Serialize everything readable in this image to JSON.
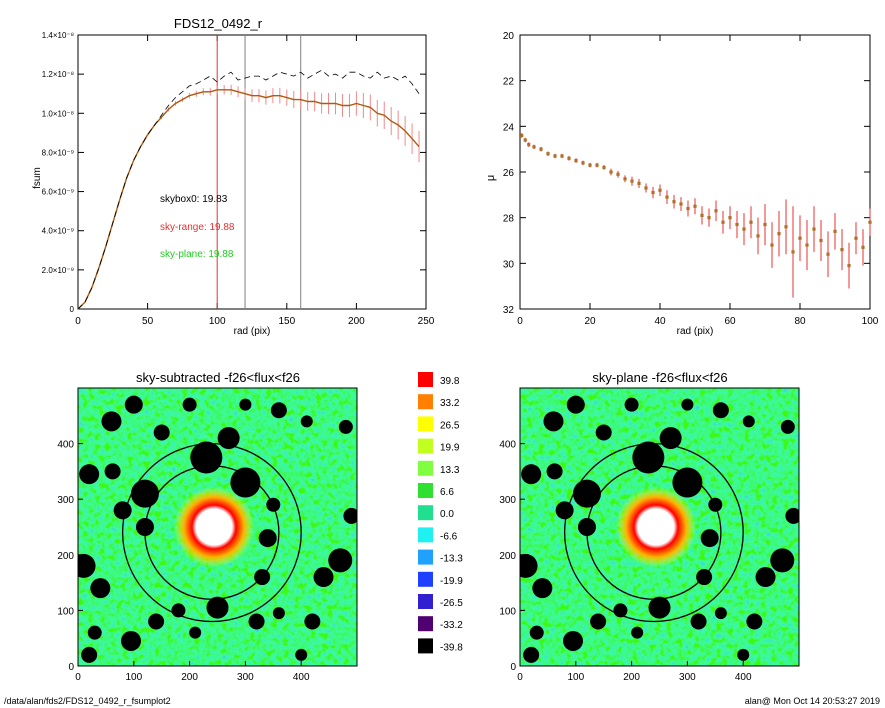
{
  "chart_data": [
    {
      "type": "line",
      "title": "FDS12_0492_r",
      "xlabel": "rad (pix)",
      "ylabel": "fsum",
      "xlim": [
        0,
        250
      ],
      "ylim": [
        0,
        1.4e-08
      ],
      "x_ticks": [
        "0",
        "50",
        "100",
        "150",
        "200",
        "250"
      ],
      "y_ticks": [
        "0",
        "2.0×10⁻⁹",
        "4.0×10⁻⁹",
        "6.0×10⁻⁹",
        "8.0×10⁻⁹",
        "1.0×10⁻⁸",
        "1.2×10⁻⁸",
        "1.4×10⁻⁸"
      ],
      "vlines": [
        {
          "x": 100,
          "color": "#e83030"
        },
        {
          "x": 120,
          "color": "#808080"
        },
        {
          "x": 160,
          "color": "#808080"
        }
      ],
      "annotations": [
        {
          "text": "skybox0: 19.83",
          "color": "#000000"
        },
        {
          "text": "sky-range: 19.88",
          "color": "#e83030"
        },
        {
          "text": "sky-plane: 19.88",
          "color": "#22cc22"
        }
      ],
      "series": [
        {
          "style": "solid",
          "color": "#b05a10",
          "x": [
            0,
            5,
            10,
            15,
            20,
            25,
            30,
            35,
            40,
            45,
            50,
            55,
            60,
            65,
            70,
            75,
            80,
            85,
            90,
            95,
            100,
            105,
            110,
            115,
            120,
            125,
            130,
            135,
            140,
            145,
            150,
            155,
            160,
            165,
            170,
            175,
            180,
            185,
            190,
            195,
            200,
            205,
            210,
            215,
            220,
            225,
            230,
            235,
            240,
            245
          ],
          "values": [
            0,
            3.5e-10,
            1.1e-09,
            2.1e-09,
            3.2e-09,
            4.4e-09,
            5.6e-09,
            6.7e-09,
            7.6e-09,
            8.3e-09,
            8.9e-09,
            9.4e-09,
            9.8e-09,
            1.02e-08,
            1.05e-08,
            1.07e-08,
            1.09e-08,
            1.1e-08,
            1.11e-08,
            1.11e-08,
            1.12e-08,
            1.12e-08,
            1.12e-08,
            1.11e-08,
            1.1e-08,
            1.09e-08,
            1.09e-08,
            1.08e-08,
            1.09e-08,
            1.09e-08,
            1.08e-08,
            1.07e-08,
            1.07e-08,
            1.06e-08,
            1.06e-08,
            1.05e-08,
            1.05e-08,
            1.05e-08,
            1.04e-08,
            1.04e-08,
            1.05e-08,
            1.04e-08,
            1.03e-08,
            1e-08,
            9.9e-09,
            9.6e-09,
            9.4e-09,
            9.1e-09,
            8.7e-09,
            8.3e-09
          ],
          "errors": [
            0,
            0,
            0,
            0,
            0,
            0,
            0,
            0,
            0,
            0,
            0,
            0,
            1e-10,
            1e-10,
            1.2e-10,
            1.2e-10,
            1.4e-10,
            1.6e-10,
            1.8e-10,
            2e-10,
            2.2e-10,
            2.4e-10,
            2.6e-10,
            2.8e-10,
            3e-10,
            3.2e-10,
            3.4e-10,
            3.6e-10,
            3.8e-10,
            4e-10,
            4.2e-10,
            4.4e-10,
            4.6e-10,
            4.8e-10,
            5e-10,
            5.2e-10,
            5.4e-10,
            5.6e-10,
            5.8e-10,
            6e-10,
            6.2e-10,
            6.4e-10,
            6.6e-10,
            6.8e-10,
            7e-10,
            7.2e-10,
            7.4e-10,
            7.6e-10,
            7.8e-10,
            8e-10
          ]
        },
        {
          "style": "dashed",
          "color": "#000000",
          "x": [
            0,
            5,
            10,
            15,
            20,
            25,
            30,
            35,
            40,
            45,
            50,
            55,
            60,
            65,
            70,
            75,
            80,
            85,
            90,
            95,
            100,
            105,
            110,
            115,
            120,
            125,
            130,
            135,
            140,
            145,
            150,
            155,
            160,
            165,
            170,
            175,
            180,
            185,
            190,
            195,
            200,
            205,
            210,
            215,
            220,
            225,
            230,
            235,
            240,
            245
          ],
          "values": [
            0,
            3.5e-10,
            1.1e-09,
            2.1e-09,
            3.2e-09,
            4.4e-09,
            5.6e-09,
            6.7e-09,
            7.6e-09,
            8.3e-09,
            8.9e-09,
            9.4e-09,
            9.9e-09,
            1.04e-08,
            1.08e-08,
            1.11e-08,
            1.14e-08,
            1.15e-08,
            1.17e-08,
            1.19e-08,
            1.16e-08,
            1.19e-08,
            1.21e-08,
            1.17e-08,
            1.18e-08,
            1.19e-08,
            1.19e-08,
            1.17e-08,
            1.19e-08,
            1.21e-08,
            1.2e-08,
            1.19e-08,
            1.21e-08,
            1.18e-08,
            1.2e-08,
            1.22e-08,
            1.19e-08,
            1.2e-08,
            1.18e-08,
            1.21e-08,
            1.21e-08,
            1.19e-08,
            1.18e-08,
            1.21e-08,
            1.18e-08,
            1.19e-08,
            1.17e-08,
            1.19e-08,
            1.15e-08,
            1.1e-08
          ]
        }
      ]
    },
    {
      "type": "scatter",
      "title": "",
      "xlabel": "rad (pix)",
      "ylabel": "μ",
      "xlim": [
        0,
        100
      ],
      "ylim": [
        32,
        20
      ],
      "x_ticks": [
        "0",
        "20",
        "40",
        "60",
        "80",
        "100"
      ],
      "y_ticks": [
        "20",
        "22",
        "24",
        "26",
        "28",
        "30",
        "32"
      ],
      "series": [
        {
          "color": "#b0702a",
          "error_color": "#e83030",
          "x": [
            0.5,
            1.5,
            2.5,
            4,
            6,
            8,
            10,
            12,
            14,
            16,
            18,
            20,
            22,
            24,
            26,
            28,
            30,
            32,
            34,
            36,
            38,
            40,
            42,
            44,
            46,
            48,
            50,
            52,
            54,
            56,
            58,
            60,
            62,
            64,
            66,
            68,
            70,
            72,
            74,
            76,
            78,
            80,
            82,
            84,
            86,
            88,
            90,
            92,
            94,
            96,
            98,
            100
          ],
          "values": [
            24.4,
            24.6,
            24.8,
            24.9,
            25.0,
            25.2,
            25.3,
            25.3,
            25.4,
            25.5,
            25.6,
            25.7,
            25.7,
            25.8,
            26.0,
            26.1,
            26.3,
            26.4,
            26.5,
            26.7,
            26.9,
            26.8,
            27.1,
            27.3,
            27.4,
            27.6,
            27.5,
            27.9,
            28.0,
            27.7,
            28.2,
            28.0,
            28.3,
            28.5,
            28.2,
            28.8,
            28.3,
            29.2,
            28.7,
            28.4,
            29.5,
            28.9,
            29.2,
            28.5,
            29.0,
            29.6,
            28.6,
            29.4,
            30.1,
            28.9,
            29.3,
            28.2
          ],
          "errors": [
            0.1,
            0.1,
            0.1,
            0.1,
            0.1,
            0.1,
            0.1,
            0.1,
            0.1,
            0.1,
            0.1,
            0.1,
            0.1,
            0.1,
            0.15,
            0.15,
            0.15,
            0.2,
            0.2,
            0.2,
            0.25,
            0.25,
            0.3,
            0.3,
            0.3,
            0.35,
            0.35,
            0.4,
            0.4,
            0.45,
            0.5,
            0.5,
            0.6,
            0.7,
            0.7,
            0.8,
            0.9,
            1.0,
            1.0,
            1.2,
            2.0,
            1.0,
            1.1,
            1.0,
            0.9,
            1.0,
            0.8,
            0.9,
            1.0,
            0.7,
            0.8,
            0.6
          ]
        }
      ]
    },
    {
      "type": "heatmap",
      "title": "sky-subtracted -f26<flux<f26",
      "xlim": [
        0,
        500
      ],
      "ylim": [
        0,
        500
      ],
      "x_ticks": [
        "0",
        "100",
        "200",
        "300",
        "400"
      ],
      "y_ticks": [
        "0",
        "100",
        "200",
        "300",
        "400"
      ],
      "ellipses": [
        {
          "cx": 240,
          "cy": 240,
          "rx": 120,
          "ry": 120,
          "color": "#000000"
        },
        {
          "cx": 240,
          "cy": 240,
          "rx": 160,
          "ry": 160,
          "color": "#000000"
        }
      ]
    },
    {
      "type": "heatmap",
      "title": "sky-plane -f26<flux<f26",
      "xlim": [
        0,
        500
      ],
      "ylim": [
        0,
        500
      ],
      "x_ticks": [
        "0",
        "100",
        "200",
        "300",
        "400"
      ],
      "y_ticks": [
        "0",
        "100",
        "200",
        "300",
        "400"
      ],
      "ellipses": [
        {
          "cx": 240,
          "cy": 240,
          "rx": 120,
          "ry": 120,
          "color": "#000000"
        },
        {
          "cx": 240,
          "cy": 240,
          "rx": 160,
          "ry": 160,
          "color": "#000000"
        }
      ]
    }
  ],
  "colorbar": {
    "labels": [
      "39.8",
      "33.2",
      "26.5",
      "19.9",
      "13.3",
      "6.6",
      "0.0",
      "-6.6",
      "-13.3",
      "-19.9",
      "-26.5",
      "-33.2",
      "-39.8"
    ],
    "colors": [
      "#ff0000",
      "#ff8000",
      "#ffff00",
      "#c0ff20",
      "#80ff40",
      "#30e030",
      "#20e090",
      "#20f0f0",
      "#20a0ff",
      "#2040ff",
      "#3020d0",
      "#500070",
      "#000000"
    ]
  },
  "footer": {
    "path": "/data/alan/fds2/FDS12_0492_r_fsumplot2",
    "stamp": "alan@  Mon Oct 14 20:53:27 2019"
  }
}
